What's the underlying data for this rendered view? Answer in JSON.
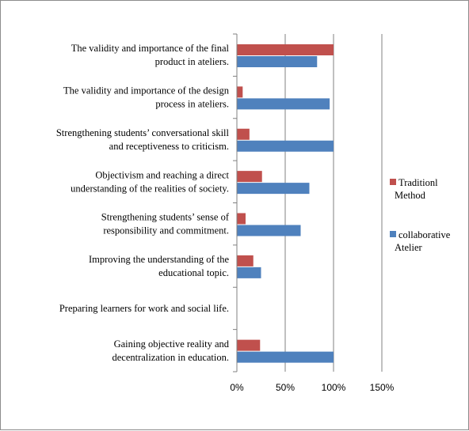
{
  "chart_data": {
    "type": "bar",
    "orientation": "horizontal",
    "categories": [
      [
        "The validity and importance of the final",
        "product in ateliers."
      ],
      [
        "The validity and importance of the design",
        "process in ateliers."
      ],
      [
        "Strengthening students’ conversational skill",
        "and receptiveness to criticism."
      ],
      [
        "Objectivism and reaching a direct",
        "understanding of the realities of society."
      ],
      [
        "Strengthening students’ sense of",
        "responsibility and commitment."
      ],
      [
        "Improving the understanding of the",
        "educational topic."
      ],
      [
        "Preparing learners for work and social life."
      ],
      [
        "Gaining objective reality and",
        "decentralization in education."
      ]
    ],
    "series": [
      {
        "name": [
          "Traditionl",
          "Method"
        ],
        "color": "#c0504d",
        "values": [
          100,
          6,
          13,
          26,
          9,
          17,
          0,
          24
        ]
      },
      {
        "name": [
          "collaborative",
          "Atelier"
        ],
        "color": "#4f81bd",
        "values": [
          83,
          96,
          100,
          75,
          66,
          25,
          0,
          100
        ]
      }
    ],
    "xlim": [
      0,
      150
    ],
    "xticks": [
      "0%",
      "50%",
      "100%",
      "150%"
    ],
    "xtick_values": [
      0,
      50,
      100,
      150
    ],
    "grid": true,
    "legend_position": "right"
  }
}
